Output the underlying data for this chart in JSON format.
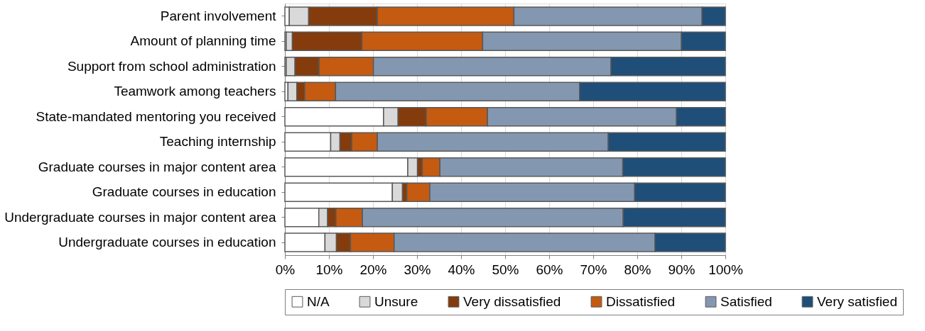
{
  "chart_data": {
    "type": "bar",
    "orientation": "horizontal",
    "stacked": true,
    "categories": [
      "Parent involvement",
      "Amount of planning time",
      "Support from school administration",
      "Teamwork among teachers",
      "State-mandated mentoring you received",
      "Teaching internship",
      "Graduate courses in major content area",
      "Graduate courses in education",
      "Undergraduate courses in major content area",
      "Undergraduate courses in education"
    ],
    "series": [
      {
        "name": "N/A",
        "color": "#ffffff",
        "values": [
          1.0,
          0.3,
          0.3,
          0.7,
          22.4,
          10.4,
          27.9,
          24.4,
          7.7,
          9.1
        ]
      },
      {
        "name": "Unsure",
        "color": "#d9d9d9",
        "values": [
          4.4,
          1.4,
          2.0,
          2.0,
          3.3,
          2.1,
          2.2,
          2.3,
          2.0,
          2.6
        ]
      },
      {
        "name": "Very dissatisfied",
        "color": "#843c0c",
        "values": [
          15.6,
          15.8,
          5.5,
          1.8,
          6.4,
          2.7,
          1.1,
          1.0,
          1.9,
          3.2
        ]
      },
      {
        "name": "Dissatisfied",
        "color": "#c55a11",
        "values": [
          31.0,
          27.4,
          12.3,
          7.0,
          13.9,
          5.8,
          4.0,
          5.2,
          6.0,
          9.9
        ]
      },
      {
        "name": "Satisfied",
        "color": "#8497b0",
        "values": [
          42.7,
          45.1,
          53.9,
          55.4,
          42.9,
          52.4,
          41.5,
          46.5,
          59.2,
          59.2
        ]
      },
      {
        "name": "Very satisfied",
        "color": "#1f4e79",
        "values": [
          5.3,
          10.0,
          26.0,
          33.1,
          11.1,
          26.6,
          23.3,
          20.6,
          23.2,
          16.0
        ]
      }
    ],
    "xlim": [
      0,
      100
    ],
    "xticks": [
      {
        "value": 0,
        "label": "0%"
      },
      {
        "value": 10,
        "label": "10%"
      },
      {
        "value": 20,
        "label": "20%"
      },
      {
        "value": 30,
        "label": "30%"
      },
      {
        "value": 40,
        "label": "40%"
      },
      {
        "value": 50,
        "label": "50%"
      },
      {
        "value": 60,
        "label": "60%"
      },
      {
        "value": 70,
        "label": "70%"
      },
      {
        "value": 80,
        "label": "80%"
      },
      {
        "value": 90,
        "label": "90%"
      },
      {
        "value": 100,
        "label": "100%"
      }
    ],
    "grid": "x",
    "legend": "bottom"
  }
}
